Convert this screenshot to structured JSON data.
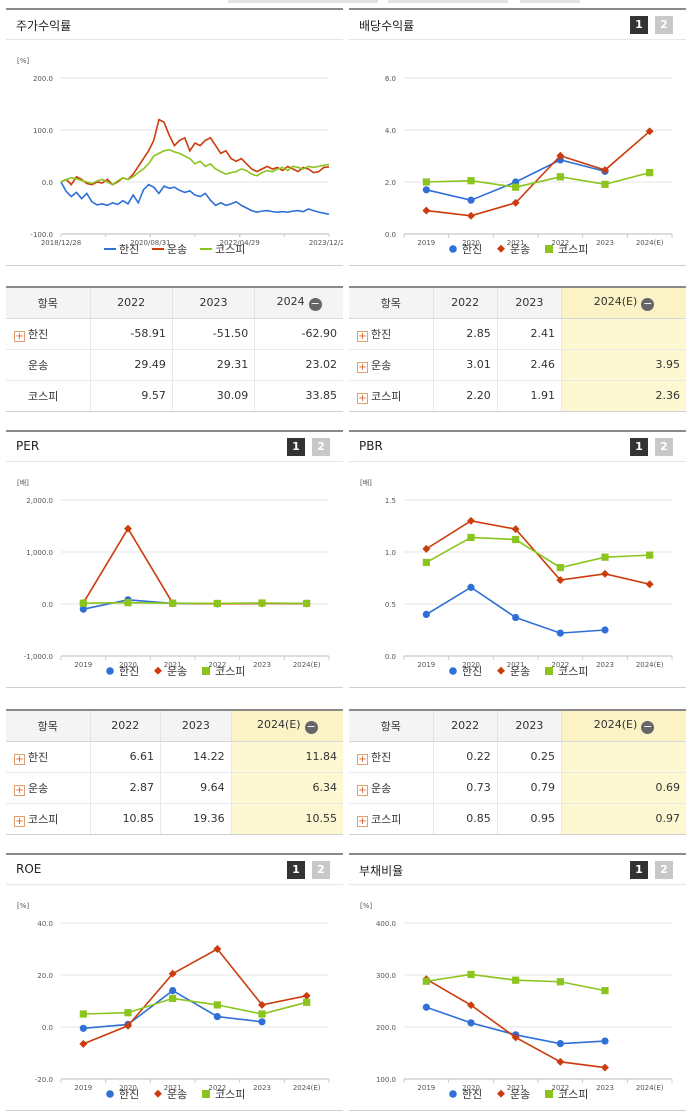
{
  "colors": {
    "hanjin": "#2f6fd6",
    "transport": "#cc3b0c",
    "kospi": "#8bc41d"
  },
  "legend": [
    "한진",
    "운송",
    "코스피"
  ],
  "panels": {
    "stock": {
      "title": "주가수익률"
    },
    "div": {
      "title": "배당수익률",
      "btn1": "1",
      "btn2": "2"
    },
    "per": {
      "title": "PER",
      "btn1": "1",
      "btn2": "2"
    },
    "pbr": {
      "title": "PBR",
      "btn1": "1",
      "btn2": "2"
    },
    "roe": {
      "title": "ROE",
      "btn1": "1",
      "btn2": "2"
    },
    "debt": {
      "title": "부채비율",
      "btn1": "1",
      "btn2": "2"
    }
  },
  "tables": {
    "stock": {
      "h0": "항목",
      "h1": "2022",
      "h2": "2023",
      "h3": "2024",
      "rows": [
        {
          "label": "한진",
          "plus": true,
          "v": [
            "-58.91",
            "-51.50",
            "-62.90"
          ]
        },
        {
          "label": "운송",
          "plus": false,
          "v": [
            "29.49",
            "29.31",
            "23.02"
          ]
        },
        {
          "label": "코스피",
          "plus": false,
          "v": [
            "9.57",
            "30.09",
            "33.85"
          ]
        }
      ]
    },
    "div": {
      "h0": "항목",
      "h1": "2022",
      "h2": "2023",
      "h3": "2024(E)",
      "rows": [
        {
          "label": "한진",
          "plus": true,
          "v": [
            "2.85",
            "2.41",
            ""
          ]
        },
        {
          "label": "운송",
          "plus": true,
          "v": [
            "3.01",
            "2.46",
            "3.95"
          ]
        },
        {
          "label": "코스피",
          "plus": true,
          "v": [
            "2.20",
            "1.91",
            "2.36"
          ]
        }
      ]
    },
    "per": {
      "h0": "항목",
      "h1": "2022",
      "h2": "2023",
      "h3": "2024(E)",
      "rows": [
        {
          "label": "한진",
          "plus": true,
          "v": [
            "6.61",
            "14.22",
            "11.84"
          ]
        },
        {
          "label": "운송",
          "plus": true,
          "v": [
            "2.87",
            "9.64",
            "6.34"
          ]
        },
        {
          "label": "코스피",
          "plus": true,
          "v": [
            "10.85",
            "19.36",
            "10.55"
          ]
        }
      ]
    },
    "pbr": {
      "h0": "항목",
      "h1": "2022",
      "h2": "2023",
      "h3": "2024(E)",
      "rows": [
        {
          "label": "한진",
          "plus": true,
          "v": [
            "0.22",
            "0.25",
            ""
          ]
        },
        {
          "label": "운송",
          "plus": true,
          "v": [
            "0.73",
            "0.79",
            "0.69"
          ]
        },
        {
          "label": "코스피",
          "plus": true,
          "v": [
            "0.85",
            "0.95",
            "0.97"
          ]
        }
      ]
    }
  },
  "chart_data": [
    {
      "id": "stock",
      "type": "line",
      "title": "주가수익률",
      "unit": "[%]",
      "ylim": [
        -100,
        200
      ],
      "yticks": [
        "200.0",
        "100.0",
        "0.0",
        "-100.0"
      ],
      "xticks": [
        "2018/12/28",
        "2020/08/31",
        "2022/04/29",
        "2023/12/28"
      ],
      "series": [
        {
          "name": "한진",
          "values": [
            0,
            -18,
            -28,
            -20,
            -32,
            -22,
            -38,
            -44,
            -42,
            -45,
            -40,
            -43,
            -36,
            -42,
            -25,
            -40,
            -15,
            -5,
            -10,
            -22,
            -8,
            -12,
            -10,
            -16,
            -20,
            -17,
            -25,
            -28,
            -22,
            -35,
            -45,
            -40,
            -45,
            -42,
            -38,
            -45,
            -50,
            -55,
            -58,
            -56,
            -55,
            -57,
            -58,
            -57,
            -58,
            -56,
            -55,
            -57,
            -52,
            -55,
            -58,
            -60,
            -62
          ]
        },
        {
          "name": "운송",
          "values": [
            0,
            5,
            -5,
            10,
            5,
            -3,
            -5,
            0,
            -2,
            5,
            -5,
            0,
            8,
            5,
            15,
            30,
            45,
            60,
            80,
            120,
            115,
            90,
            70,
            80,
            85,
            60,
            75,
            70,
            80,
            85,
            70,
            55,
            60,
            45,
            40,
            45,
            35,
            25,
            20,
            25,
            30,
            25,
            28,
            22,
            30,
            25,
            20,
            28,
            25,
            18,
            20,
            28,
            29
          ]
        },
        {
          "name": "코스피",
          "values": [
            0,
            5,
            8,
            6,
            3,
            0,
            -3,
            2,
            5,
            0,
            -5,
            2,
            8,
            5,
            10,
            18,
            25,
            35,
            50,
            55,
            60,
            62,
            58,
            55,
            50,
            45,
            35,
            40,
            30,
            35,
            25,
            20,
            15,
            18,
            20,
            25,
            22,
            15,
            12,
            18,
            22,
            20,
            25,
            28,
            22,
            30,
            28,
            25,
            30,
            28,
            30,
            32,
            34
          ]
        }
      ]
    },
    {
      "id": "div",
      "type": "line",
      "title": "배당수익률",
      "ylim": [
        0,
        6
      ],
      "yticks": [
        "6.0",
        "4.0",
        "2.0",
        "0.0"
      ],
      "categories": [
        "2019",
        "2020",
        "2021",
        "2022",
        "2023",
        "2024(E)"
      ],
      "series": [
        {
          "name": "한진",
          "values": [
            1.7,
            1.3,
            2.0,
            2.85,
            2.41,
            null
          ]
        },
        {
          "name": "운송",
          "values": [
            0.9,
            0.7,
            1.2,
            3.01,
            2.46,
            3.95
          ]
        },
        {
          "name": "코스피",
          "values": [
            2.0,
            2.05,
            1.8,
            2.2,
            1.91,
            2.36
          ]
        }
      ]
    },
    {
      "id": "per",
      "type": "line",
      "title": "PER",
      "unit": "[배]",
      "ylim": [
        -1000,
        2000
      ],
      "yticks": [
        "2,000.0",
        "1,000.0",
        "0.0",
        "-1,000.0"
      ],
      "categories": [
        "2019",
        "2020",
        "2021",
        "2022",
        "2023",
        "2024(E)"
      ],
      "series": [
        {
          "name": "한진",
          "values": [
            -100,
            80,
            10,
            6.61,
            14.22,
            11.84
          ]
        },
        {
          "name": "운송",
          "values": [
            20,
            1450,
            15,
            2.87,
            9.64,
            6.34
          ]
        },
        {
          "name": "코스피",
          "values": [
            15,
            25,
            15,
            10.85,
            19.36,
            10.55
          ]
        }
      ]
    },
    {
      "id": "pbr",
      "type": "line",
      "title": "PBR",
      "unit": "[배]",
      "ylim": [
        0,
        1.5
      ],
      "yticks": [
        "1.5",
        "1.0",
        "0.5",
        "0.0"
      ],
      "categories": [
        "2019",
        "2020",
        "2021",
        "2022",
        "2023",
        "2024(E)"
      ],
      "series": [
        {
          "name": "한진",
          "values": [
            0.4,
            0.66,
            0.37,
            0.22,
            0.25,
            null
          ]
        },
        {
          "name": "운송",
          "values": [
            1.03,
            1.3,
            1.22,
            0.73,
            0.79,
            0.69
          ]
        },
        {
          "name": "코스피",
          "values": [
            0.9,
            1.14,
            1.12,
            0.85,
            0.95,
            0.97
          ]
        }
      ]
    },
    {
      "id": "roe",
      "type": "line",
      "title": "ROE",
      "unit": "[%]",
      "ylim": [
        -20,
        40
      ],
      "yticks": [
        "40.0",
        "20.0",
        "0.0",
        "-20.0"
      ],
      "categories": [
        "2019",
        "2020",
        "2021",
        "2022",
        "2023",
        "2024(E)"
      ],
      "series": [
        {
          "name": "한진",
          "values": [
            -0.5,
            1,
            14,
            4,
            2,
            null
          ]
        },
        {
          "name": "운송",
          "values": [
            -6.5,
            0.5,
            20.5,
            30,
            8.5,
            12
          ]
        },
        {
          "name": "코스피",
          "values": [
            5,
            5.5,
            11,
            8.5,
            5,
            9.5
          ]
        }
      ]
    },
    {
      "id": "debt",
      "type": "line",
      "title": "부채비율",
      "unit": "[%]",
      "ylim": [
        100,
        400
      ],
      "yticks": [
        "400.0",
        "300.0",
        "200.0",
        "100.0"
      ],
      "categories": [
        "2019",
        "2020",
        "2021",
        "2022",
        "2023",
        "2024(E)"
      ],
      "series": [
        {
          "name": "한진",
          "values": [
            238,
            208,
            185,
            168,
            173,
            null
          ]
        },
        {
          "name": "운송",
          "values": [
            292,
            242,
            180,
            133,
            122,
            null
          ]
        },
        {
          "name": "코스피",
          "values": [
            288,
            301,
            290,
            287,
            270,
            null
          ]
        }
      ]
    }
  ]
}
